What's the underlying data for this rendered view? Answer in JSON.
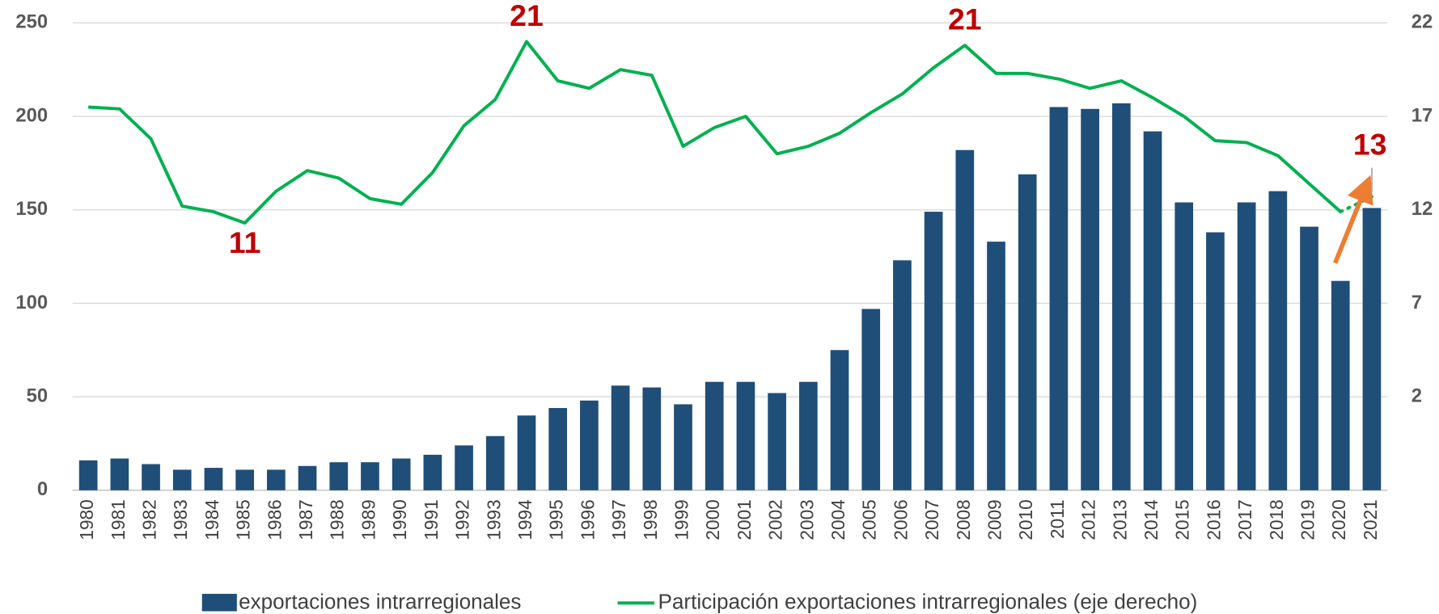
{
  "chart_data": {
    "type": "bar-line",
    "categories": [
      "1980",
      "1981",
      "1982",
      "1983",
      "1984",
      "1985",
      "1986",
      "1987",
      "1988",
      "1989",
      "1990",
      "1991",
      "1992",
      "1993",
      "1994",
      "1995",
      "1996",
      "1997",
      "1998",
      "1999",
      "2000",
      "2001",
      "2002",
      "2003",
      "2004",
      "2005",
      "2006",
      "2007",
      "2008",
      "2009",
      "2010",
      "2011",
      "2012",
      "2013",
      "2014",
      "2015",
      "2016",
      "2017",
      "2018",
      "2019",
      "2020",
      "2021"
    ],
    "series": [
      {
        "name": "exportaciones intrarregionales",
        "type": "bar",
        "color": "#1f4e79",
        "values": [
          16,
          17,
          14,
          11,
          12,
          11,
          11,
          13,
          15,
          15,
          17,
          19,
          24,
          29,
          40,
          44,
          48,
          56,
          55,
          46,
          58,
          58,
          52,
          58,
          75,
          97,
          123,
          149,
          182,
          133,
          169,
          205,
          204,
          207,
          192,
          154,
          138,
          154,
          160,
          141,
          112,
          151
        ]
      },
      {
        "name": "Participación exportaciones intrarregionales (eje derecho)",
        "type": "line",
        "axis": "y2",
        "color": "#00b050",
        "dashed_last_segment": true,
        "values": [
          17.5,
          17.4,
          15.8,
          12.2,
          11.9,
          11.3,
          13.0,
          14.1,
          13.7,
          12.6,
          12.3,
          14.0,
          16.5,
          17.9,
          21.0,
          18.9,
          18.5,
          19.5,
          19.2,
          15.4,
          16.4,
          17.0,
          15.0,
          15.4,
          16.1,
          17.2,
          18.2,
          19.6,
          20.8,
          19.3,
          19.3,
          19.0,
          18.5,
          18.9,
          18.0,
          17.0,
          15.7,
          15.6,
          14.9,
          13.4,
          11.9,
          12.7
        ]
      }
    ],
    "ylim": [
      0,
      250
    ],
    "yticks": [
      0,
      50,
      100,
      150,
      200,
      250
    ],
    "y2lim": [
      -3,
      22
    ],
    "y2ticks": [
      2,
      7,
      12,
      17,
      22
    ],
    "grid": true,
    "annotations": [
      {
        "x": "1985",
        "text": "11",
        "placement": "below"
      },
      {
        "x": "1994",
        "text": "21",
        "placement": "above"
      },
      {
        "x": "2008",
        "text": "21",
        "placement": "above"
      },
      {
        "x": "2021",
        "text": "13",
        "placement": "above"
      }
    ]
  }
}
